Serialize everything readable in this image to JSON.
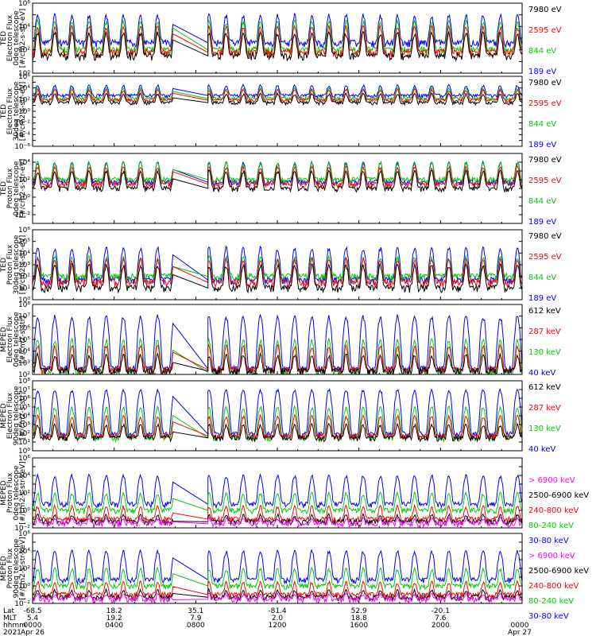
{
  "chart_data": [
    {
      "type": "line",
      "ylabel": [
        "TED",
        "Electron Flux",
        "0deg telescope",
        "[#/cm2-s-str-eV]"
      ],
      "yscale": "log",
      "ylim": [
        1,
        1000000
      ],
      "yticks": [
        1,
        100,
        10000,
        1000000
      ],
      "series": [
        {
          "name": "7980 eV",
          "color": "#000000",
          "base": 30,
          "peak": 3000
        },
        {
          "name": "2595 eV",
          "color": "#ff0000",
          "base": 60,
          "peak": 10000
        },
        {
          "name": "844 eV",
          "color": "#00cc00",
          "base": 100,
          "peak": 30000
        },
        {
          "name": "189 eV",
          "color": "#0000ff",
          "base": 400,
          "peak": 100000
        }
      ]
    },
    {
      "type": "line",
      "ylabel": [
        "TED",
        "Electron Flux",
        "30deg telescope",
        "[#/cm2-s-str-eV]"
      ],
      "yscale": "log",
      "ylim": [
        1e-06,
        1000000
      ],
      "yticks": [
        1e-06,
        0.0001,
        0.01,
        1,
        100,
        10000,
        1000000
      ],
      "series": [
        {
          "name": "7980 eV",
          "color": "#000000",
          "base": 30,
          "peak": 1000
        },
        {
          "name": "2595 eV",
          "color": "#ff0000",
          "base": 80,
          "peak": 5000
        },
        {
          "name": "844 eV",
          "color": "#00cc00",
          "base": 150,
          "peak": 10000
        },
        {
          "name": "189 eV",
          "color": "#0000ff",
          "base": 500,
          "peak": 30000
        }
      ]
    },
    {
      "type": "line",
      "ylabel": [
        "TED",
        "Proton Flux",
        "0deg telescope",
        "[#/cm2-s-str-eV]"
      ],
      "yscale": "log",
      "ylim": [
        0.001,
        100000
      ],
      "yticks": [
        0.01,
        1,
        100,
        10000
      ],
      "series": [
        {
          "name": "7980 eV",
          "color": "#000000",
          "base": 10,
          "peak": 1000
        },
        {
          "name": "2595 eV",
          "color": "#ff0000",
          "base": 30,
          "peak": 3000
        },
        {
          "name": "844 eV",
          "color": "#00cc00",
          "base": 100,
          "peak": 10000
        },
        {
          "name": "189 eV",
          "color": "#0000ff",
          "base": 50,
          "peak": 10000
        }
      ]
    },
    {
      "type": "line",
      "ylabel": [
        "TED",
        "Proton Flux",
        "30deg telescope",
        "[#/cm2-s-str-eV]"
      ],
      "yscale": "log",
      "ylim": [
        1,
        1000000
      ],
      "yticks": [
        1,
        10,
        100,
        1000,
        10000,
        100000,
        1000000
      ],
      "series": [
        {
          "name": "7980 eV",
          "color": "#000000",
          "base": 10,
          "peak": 1000
        },
        {
          "name": "2595 eV",
          "color": "#ff0000",
          "base": 30,
          "peak": 3000
        },
        {
          "name": "844 eV",
          "color": "#00cc00",
          "base": 100,
          "peak": 5000
        },
        {
          "name": "189 eV",
          "color": "#0000ff",
          "base": 50,
          "peak": 30000
        }
      ]
    },
    {
      "type": "line",
      "ylabel": [
        "MEPED",
        "Electron Flux",
        "0deg telescope",
        "[#/cm2-s-str]"
      ],
      "yscale": "log",
      "ylim": [
        100,
        100000000
      ],
      "yticks": [
        100,
        1000,
        10000,
        100000,
        1000000,
        10000000,
        100000000
      ],
      "series": [
        {
          "name": "612 keV",
          "color": "#000000",
          "base": 200,
          "peak": 5000
        },
        {
          "name": "287 keV",
          "color": "#ff0000",
          "base": 250,
          "peak": 30000
        },
        {
          "name": "130 keV",
          "color": "#00cc00",
          "base": 150,
          "peak": 100000
        },
        {
          "name": "40 keV",
          "color": "#0000ff",
          "base": 300,
          "peak": 10000000
        }
      ]
    },
    {
      "type": "line",
      "ylabel": [
        "MEPED",
        "Electron Flux",
        "90deg telescope",
        "[#/cm2-s-str]"
      ],
      "yscale": "log",
      "ylim": [
        1,
        100000000
      ],
      "yticks": [
        1,
        10,
        100,
        1000,
        10000,
        100000,
        1000000,
        10000000,
        100000000
      ],
      "series": [
        {
          "name": "612 keV",
          "color": "#000000",
          "base": 30,
          "peak": 1000
        },
        {
          "name": "287 keV",
          "color": "#ff0000",
          "base": 50,
          "peak": 10000
        },
        {
          "name": "130 keV",
          "color": "#00cc00",
          "base": 30,
          "peak": 100000
        },
        {
          "name": "40 keV",
          "color": "#0000ff",
          "base": 80,
          "peak": 10000000
        }
      ]
    },
    {
      "type": "line",
      "ylabel": [
        "MEPED",
        "Proton Flux",
        "0deg telescope",
        "[#/cm2-s-str-keV]"
      ],
      "yscale": "log",
      "ylim": [
        0.01,
        1000000
      ],
      "yticks": [
        0.01,
        1,
        100,
        10000,
        1000000
      ],
      "series": [
        {
          "name": "> 6900 keV",
          "color": "#ff00ff",
          "base": 0.03,
          "peak": 0.1
        },
        {
          "name": "2500-6900 keV",
          "color": "#000000",
          "base": 0.05,
          "peak": 0.3
        },
        {
          "name": "240-800 keV",
          "color": "#ff0000",
          "base": 0.1,
          "peak": 3
        },
        {
          "name": "80-240 keV",
          "color": "#00cc00",
          "base": 1,
          "peak": 100
        },
        {
          "name": "30-80 keV",
          "color": "#0000ff",
          "base": 5,
          "peak": 10000
        }
      ]
    },
    {
      "type": "line",
      "ylabel": [
        "MEPED",
        "Proton Flux",
        "90deg telescope",
        "[#/cm2-s-str-keV]"
      ],
      "yscale": "log",
      "ylim": [
        0.01,
        1000000
      ],
      "yticks": [
        0.01,
        1,
        100,
        10000,
        1000000
      ],
      "series": [
        {
          "name": "> 6900 keV",
          "color": "#ff00ff",
          "base": 0.03,
          "peak": 0.1
        },
        {
          "name": "2500-6900 keV",
          "color": "#000000",
          "base": 0.05,
          "peak": 0.3
        },
        {
          "name": "240-800 keV",
          "color": "#ff0000",
          "base": 0.1,
          "peak": 3
        },
        {
          "name": "80-240 keV",
          "color": "#00cc00",
          "base": 1,
          "peak": 100
        },
        {
          "name": "30-80 keV",
          "color": "#0000ff",
          "base": 5,
          "peak": 10000
        }
      ]
    }
  ],
  "time_axis": {
    "range_hours": [
      0,
      24
    ],
    "gap_hours": [
      6.9,
      8.6
    ],
    "row_labels": [
      "Lat",
      "MLT",
      "hhmm",
      "2021"
    ],
    "ticks": [
      {
        "hour": 0,
        "lat": "-68.5",
        "mlt": "5.4",
        "hhmm": "0000",
        "date": "Apr 26"
      },
      {
        "hour": 4,
        "lat": "18.2",
        "mlt": "19.2",
        "hhmm": "0400",
        "date": ""
      },
      {
        "hour": 8,
        "lat": "35.1",
        "mlt": "7.9",
        "hhmm": "0800",
        "date": ""
      },
      {
        "hour": 12,
        "lat": "-81.4",
        "mlt": "2.0",
        "hhmm": "1200",
        "date": ""
      },
      {
        "hour": 16,
        "lat": "52.9",
        "mlt": "18.8",
        "hhmm": "1600",
        "date": ""
      },
      {
        "hour": 20,
        "lat": "-20.1",
        "mlt": "7.6",
        "hhmm": "2000",
        "date": ""
      },
      {
        "hour": 24,
        "lat": "",
        "mlt": "",
        "hhmm": "0000",
        "date": "Apr 27"
      }
    ]
  }
}
